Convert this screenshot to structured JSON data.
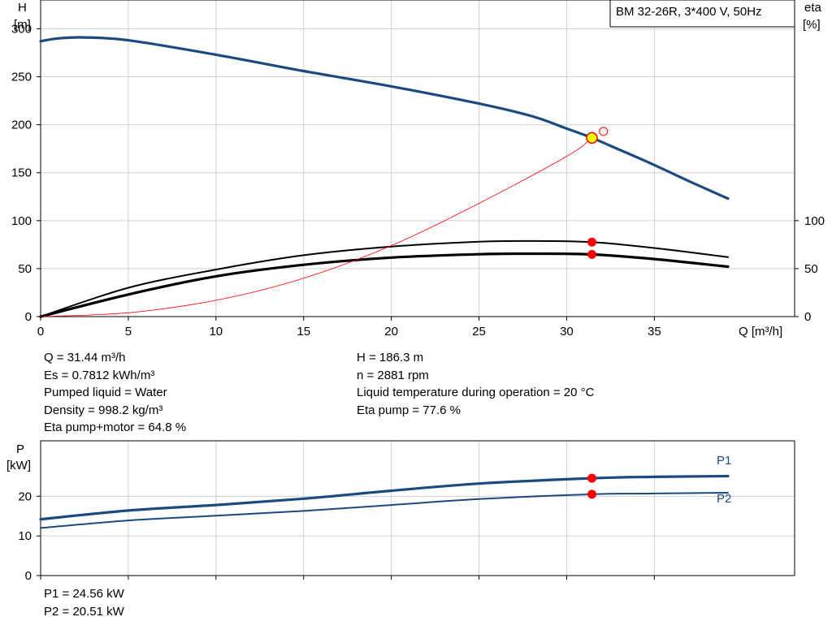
{
  "chart_data": [
    {
      "type": "line",
      "title": "BM 32-26R, 3*400 V, 50Hz",
      "xlabel": "Q [m³/h]",
      "ylabel_left": [
        "H",
        "[m]"
      ],
      "ylabel_right": [
        "eta",
        "[%]"
      ],
      "xlim": [
        0,
        43
      ],
      "ylim": [
        0,
        330
      ],
      "grid": true,
      "x_ticks": [
        0,
        5,
        10,
        15,
        20,
        25,
        30,
        35
      ],
      "y_ticks_left": [
        0,
        50,
        100,
        150,
        200,
        250,
        300
      ],
      "y_ticks_right": [
        0,
        50,
        100
      ],
      "series": [
        {
          "id": "head",
          "color": "#1a4a80",
          "x": [
            0,
            1,
            2.5,
            5,
            10,
            15,
            20,
            25,
            28,
            30,
            31.44,
            33,
            35,
            37,
            39.2
          ],
          "y": [
            287,
            290,
            291,
            288,
            273,
            256,
            240,
            222,
            209,
            196,
            186.3,
            174,
            158,
            141,
            123
          ]
        },
        {
          "id": "eta_pump",
          "color": "#000000",
          "x": [
            0,
            5,
            10,
            15,
            20,
            25,
            28,
            31.44,
            35,
            39.2
          ],
          "y": [
            0,
            30,
            49,
            64,
            73,
            78,
            78.8,
            77.6,
            71.5,
            62
          ]
        },
        {
          "id": "eta_pump_motor",
          "color": "#000000",
          "x": [
            0,
            5,
            10,
            15,
            20,
            25,
            28,
            31.44,
            35,
            39.2
          ],
          "y": [
            0,
            23,
            42,
            54,
            61.5,
            65,
            65.6,
            64.8,
            60,
            52
          ]
        },
        {
          "id": "system_curve",
          "color": "#ff0000",
          "x": [
            0,
            5,
            10,
            15,
            20,
            25,
            30,
            31.44
          ],
          "y": [
            0,
            4,
            17,
            40,
            74,
            118,
            167,
            186.3
          ]
        }
      ],
      "operating_points": [
        {
          "x": 31.44,
          "y": 186.3,
          "kind": "head",
          "fill": "#ffff00",
          "stroke": "#ff0000"
        },
        {
          "x": 31.44,
          "y": 77.6,
          "kind": "eta",
          "fill": "#ff0000"
        },
        {
          "x": 31.44,
          "y": 64.8,
          "kind": "eta",
          "fill": "#ff0000"
        }
      ],
      "open_marker": {
        "x": 32.1,
        "y": 193,
        "stroke": "#ff0000"
      }
    },
    {
      "type": "line",
      "ylabel_left": [
        "P",
        "[kW]"
      ],
      "xlim": [
        0,
        43
      ],
      "ylim": [
        0,
        34
      ],
      "grid": true,
      "x_ticks": [
        0,
        5,
        10,
        15,
        20,
        25,
        30,
        35
      ],
      "y_ticks_left": [
        0,
        10,
        20
      ],
      "series": [
        {
          "name": "P1",
          "color": "#1a4a80",
          "x": [
            0,
            5,
            10,
            15,
            20,
            25,
            31.44,
            35,
            39.2
          ],
          "y": [
            14.2,
            16.4,
            17.8,
            19.4,
            21.4,
            23.2,
            24.56,
            24.9,
            25.1
          ]
        },
        {
          "name": "P2",
          "color": "#1a4a80",
          "x": [
            0,
            5,
            10,
            15,
            20,
            25,
            31.44,
            35,
            39.2
          ],
          "y": [
            12.0,
            13.9,
            15.1,
            16.3,
            17.8,
            19.3,
            20.51,
            20.7,
            20.9
          ]
        }
      ],
      "operating_points": [
        {
          "x": 31.44,
          "y": 24.56,
          "fill": "#ff0000"
        },
        {
          "x": 31.44,
          "y": 20.51,
          "fill": "#ff0000"
        }
      ]
    }
  ],
  "info_left": [
    "Q = 31.44 m³/h",
    "Es = 0.7812 kWh/m³",
    "Pumped liquid = Water",
    "Density = 998.2 kg/m³",
    "Eta pump+motor = 64.8 %"
  ],
  "info_right": [
    "H = 186.3 m",
    "n = 2881 rpm",
    "Liquid temperature during operation = 20 °C",
    "Eta pump = 77.6 %"
  ],
  "power_info": [
    "P1 = 24.56 kW",
    "P2 = 20.51 kW"
  ]
}
